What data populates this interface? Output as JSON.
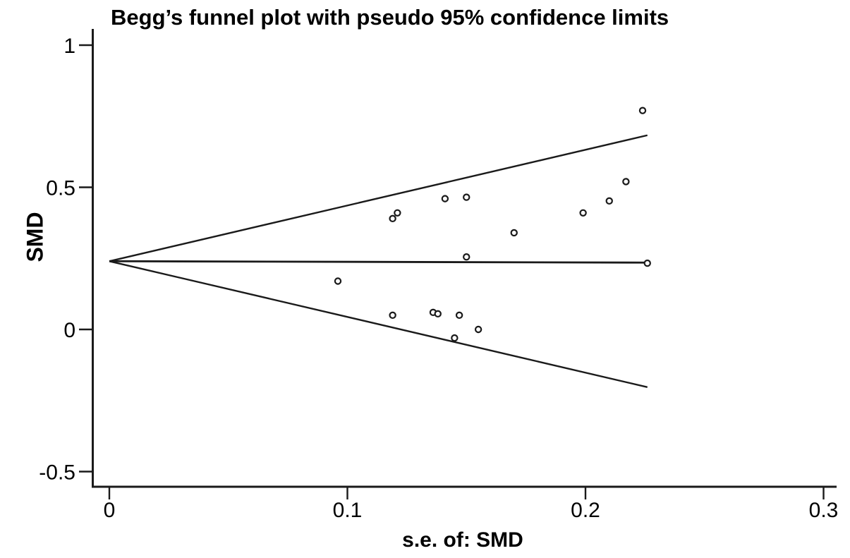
{
  "chart_data": {
    "type": "scatter",
    "subtype": "funnel-plot",
    "title": "Begg’s funnel plot with pseudo 95% confidence limits",
    "xlabel": "s.e. of: SMD",
    "ylabel": "SMD",
    "xlim": [
      0,
      0.305
    ],
    "ylim": [
      -0.55,
      1.06
    ],
    "grid": false,
    "legend": null,
    "x_ticks": {
      "values": [
        0,
        0.1,
        0.2,
        0.3
      ],
      "labels": [
        "0",
        "0.1",
        "0.2",
        "0.3"
      ]
    },
    "y_ticks": {
      "values": [
        1,
        0.5,
        0,
        -0.5
      ],
      "labels": [
        "1",
        "0.5",
        "0",
        "-0.5"
      ]
    },
    "funnel": {
      "center_smd": 0.24,
      "z": 1.96,
      "se_start": 0,
      "se_end": 0.226,
      "upper_limit_at_end": 0.683,
      "lower_limit_at_end": -0.203
    },
    "points": [
      {
        "se": 0.096,
        "smd": 0.17
      },
      {
        "se": 0.119,
        "smd": 0.39
      },
      {
        "se": 0.121,
        "smd": 0.41
      },
      {
        "se": 0.119,
        "smd": 0.05
      },
      {
        "se": 0.136,
        "smd": 0.06
      },
      {
        "se": 0.138,
        "smd": 0.055
      },
      {
        "se": 0.141,
        "smd": 0.46
      },
      {
        "se": 0.145,
        "smd": -0.03
      },
      {
        "se": 0.147,
        "smd": 0.05
      },
      {
        "se": 0.15,
        "smd": 0.465
      },
      {
        "se": 0.15,
        "smd": 0.255
      },
      {
        "se": 0.155,
        "smd": 0.0
      },
      {
        "se": 0.17,
        "smd": 0.34
      },
      {
        "se": 0.199,
        "smd": 0.41
      },
      {
        "se": 0.21,
        "smd": 0.452
      },
      {
        "se": 0.217,
        "smd": 0.52
      },
      {
        "se": 0.224,
        "smd": 0.77
      },
      {
        "se": 0.226,
        "smd": 0.233
      }
    ],
    "colors": {
      "line": "#1a1a1a",
      "axis": "#1a1a1a",
      "marker_stroke": "#1a1a1a",
      "marker_fill": "#ffffff",
      "background": "#ffffff",
      "text": "#000000"
    }
  }
}
